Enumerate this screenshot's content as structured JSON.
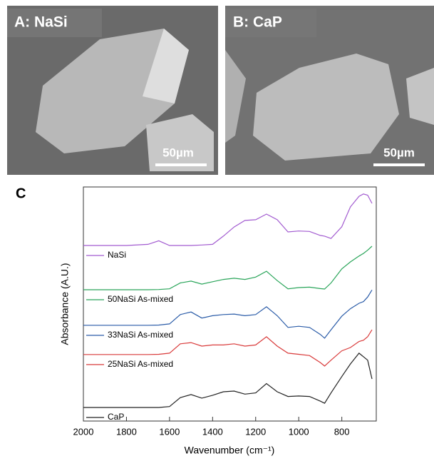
{
  "panels": [
    {
      "label": "A: NaSi",
      "scale_bar": "50µm"
    },
    {
      "label": "B: CaP",
      "scale_bar": "50µm"
    }
  ],
  "panel_c_label": "C",
  "chart_data": {
    "type": "line",
    "x_label": "Wavenumber (cm⁻¹)",
    "y_label": "Absorbance (A.U.)",
    "xlim": [
      2000,
      640
    ],
    "ylim": [
      0,
      10
    ],
    "xticks": [
      2000,
      1800,
      1600,
      1400,
      1200,
      1000,
      800
    ],
    "x": [
      2000,
      1900,
      1800,
      1700,
      1650,
      1600,
      1550,
      1500,
      1450,
      1400,
      1350,
      1300,
      1250,
      1200,
      1150,
      1100,
      1050,
      1000,
      950,
      900,
      880,
      850,
      800,
      760,
      720,
      700,
      680,
      660
    ],
    "series": [
      {
        "name": "NaSi",
        "color": "#a25bd0",
        "values": [
          7.5,
          7.5,
          7.5,
          7.55,
          7.7,
          7.5,
          7.5,
          7.5,
          7.52,
          7.55,
          7.9,
          8.29,
          8.57,
          8.6,
          8.84,
          8.6,
          8.08,
          8.12,
          8.1,
          7.93,
          7.9,
          7.8,
          8.3,
          9.15,
          9.6,
          9.7,
          9.65,
          9.3
        ]
      },
      {
        "name": "50NaSi As-mixed",
        "color": "#2aa55a",
        "values": [
          5.61,
          5.61,
          5.61,
          5.61,
          5.62,
          5.65,
          5.9,
          5.98,
          5.85,
          5.95,
          6.05,
          6.1,
          6.05,
          6.15,
          6.4,
          6.0,
          5.65,
          5.7,
          5.72,
          5.66,
          5.64,
          5.9,
          6.5,
          6.8,
          7.05,
          7.16,
          7.3,
          7.47
        ]
      },
      {
        "name": "33NaSi As-mixed",
        "color": "#2b5ca8",
        "values": [
          4.09,
          4.09,
          4.09,
          4.09,
          4.1,
          4.15,
          4.55,
          4.66,
          4.4,
          4.5,
          4.55,
          4.57,
          4.5,
          4.55,
          4.88,
          4.5,
          4.0,
          4.05,
          4.0,
          3.7,
          3.54,
          3.9,
          4.48,
          4.8,
          5.03,
          5.1,
          5.3,
          5.6
        ]
      },
      {
        "name": "25NaSi As-mixed",
        "color": "#d93a3a",
        "values": [
          2.84,
          2.84,
          2.84,
          2.84,
          2.85,
          2.9,
          3.3,
          3.35,
          3.2,
          3.25,
          3.25,
          3.3,
          3.2,
          3.25,
          3.6,
          3.2,
          2.9,
          2.85,
          2.8,
          2.5,
          2.35,
          2.6,
          3.0,
          3.14,
          3.4,
          3.45,
          3.6,
          3.9
        ]
      },
      {
        "name": "CaP",
        "color": "#222222",
        "values": [
          0.58,
          0.58,
          0.58,
          0.58,
          0.58,
          0.62,
          1.0,
          1.13,
          0.98,
          1.1,
          1.25,
          1.28,
          1.15,
          1.2,
          1.6,
          1.25,
          1.05,
          1.07,
          1.05,
          0.85,
          0.76,
          1.2,
          1.9,
          2.44,
          2.9,
          2.75,
          2.6,
          1.8
        ]
      }
    ]
  }
}
